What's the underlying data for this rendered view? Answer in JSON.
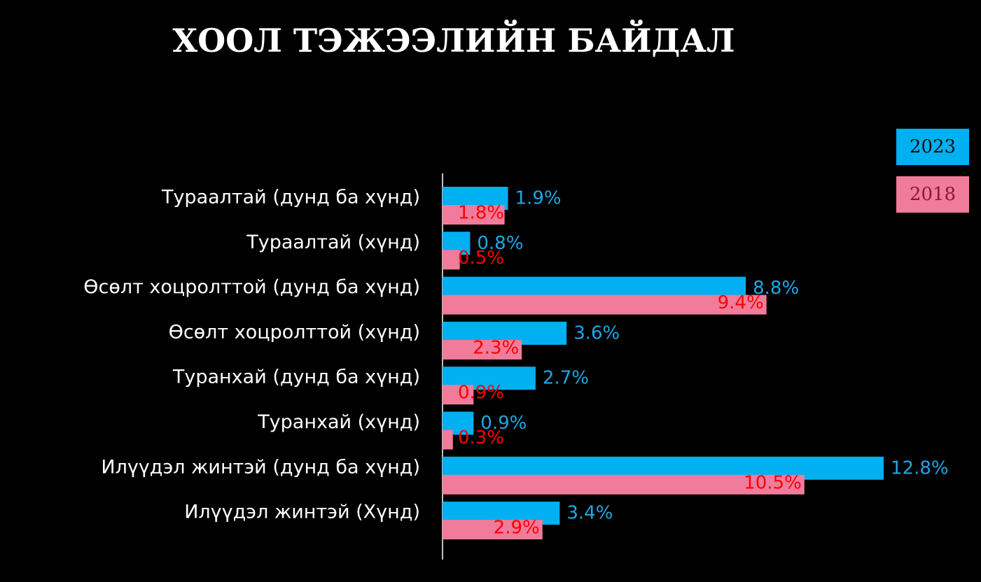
{
  "chart_data": {
    "type": "bar",
    "orientation": "horizontal",
    "title": "ХООЛ ТЭЖЭЭЛИЙН БАЙДАЛ",
    "categories": [
      "Тураалтай (дунд ба хүнд)",
      "Тураалтай (хүнд)",
      "Өсөлт хоцролттой  (дунд ба хүнд)",
      "Өсөлт хоцролттой (хүнд)",
      "Туранхай (дунд ба хүнд)",
      "Туранхай (хүнд)",
      "Илүүдэл жинтэй (дунд ба хүнд)",
      "Илүүдэл жинтэй (Хүнд)"
    ],
    "series": [
      {
        "name": "2023",
        "color": "#00b0f0",
        "label_color": "#1ea7e6",
        "values": [
          1.9,
          0.8,
          8.8,
          3.6,
          2.7,
          0.9,
          12.8,
          3.4
        ],
        "value_labels": [
          "1.9%",
          "0.8%",
          "8.8%",
          "3.6%",
          "2.7%",
          "0.9%",
          "12.8%",
          "3.4%"
        ]
      },
      {
        "name": "2018",
        "color": "#f07b9a",
        "label_color": "#ff0000",
        "values": [
          1.8,
          0.5,
          9.4,
          2.3,
          0.9,
          0.3,
          10.5,
          2.9
        ],
        "value_labels": [
          "1.8%",
          "0.5%",
          "9.4%",
          "2.3%",
          "0.9%",
          "0.3%",
          "10.5%",
          "2.9%"
        ]
      }
    ]
  }
}
